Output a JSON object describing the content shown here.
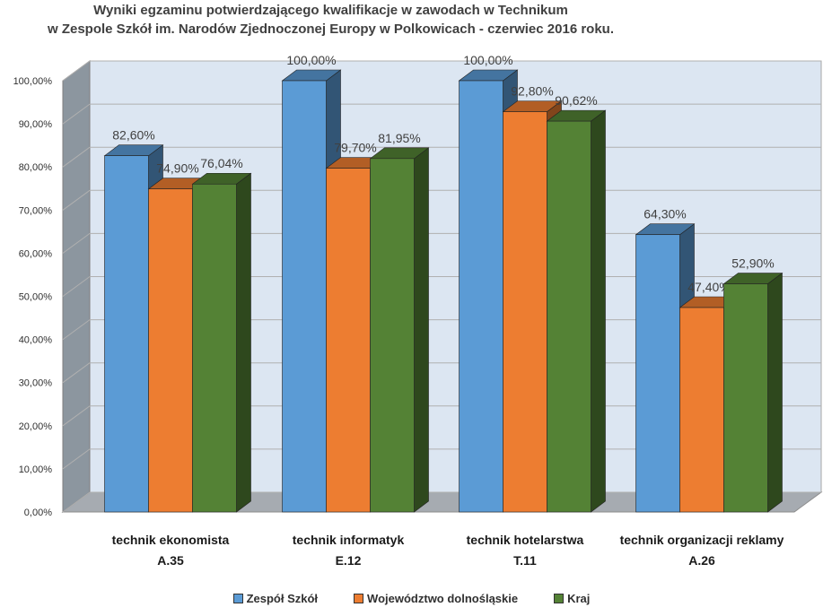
{
  "chart_data": {
    "type": "bar",
    "title": "Wyniki egzaminu potwierdzającego kwalifikacje w zawodach w Technikum",
    "subtitle": "w Zespole Szkół im. Narodów Zjednoczonej Europy w Polkowicach - czerwiec 2016 roku.",
    "categories": [
      [
        "technik ekonomista",
        "A.35"
      ],
      [
        "technik  informatyk",
        "E.12"
      ],
      [
        "technik hotelarstwa",
        "T.11"
      ],
      [
        "technik organizacji reklamy",
        "A.26"
      ]
    ],
    "series": [
      {
        "name": "Zespół Szkół",
        "values": [
          82.6,
          100.0,
          100.0,
          64.3
        ],
        "labels": [
          "82,60%",
          "100,00%",
          "100,00%",
          "64,30%"
        ],
        "color": "#5B9BD5"
      },
      {
        "name": "Województwo dolnośląskie",
        "values": [
          74.9,
          79.7,
          92.8,
          47.4
        ],
        "labels": [
          "74,90%",
          "79,70%",
          "92,80%",
          "47,40%"
        ],
        "color": "#ED7D31"
      },
      {
        "name": "Kraj",
        "values": [
          76.04,
          81.95,
          90.62,
          52.9
        ],
        "labels": [
          "76,04%",
          "81,95%",
          "90,62%",
          "52,90%"
        ],
        "color": "#548235"
      }
    ],
    "yticks": [
      "0,00%",
      "10,00%",
      "20,00%",
      "30,00%",
      "40,00%",
      "50,00%",
      "60,00%",
      "70,00%",
      "80,00%",
      "90,00%",
      "100,00%"
    ],
    "ylim": [
      0,
      100
    ],
    "grid": true,
    "legend_position": "bottom"
  }
}
